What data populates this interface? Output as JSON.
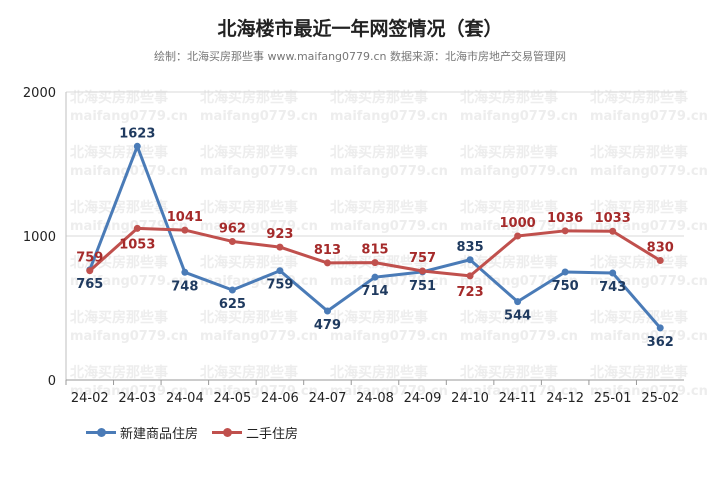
{
  "title": "北海楼市最近一年网签情况（套）",
  "subtitle": "绘制：北海买房那些事 www.maifang0779.cn 数据来源：北海市房地产交易管理网",
  "watermark": [
    "北海买房那些事",
    "maifang0779.cn"
  ],
  "colors": {
    "new": "#4a7bb7",
    "second": "#c0504d",
    "grid": "#d9d9d9",
    "new_label": "#1f3a5f",
    "second_label": "#a52a2a"
  },
  "chart_data": {
    "type": "line",
    "categories": [
      "24-02",
      "24-03",
      "24-04",
      "24-05",
      "24-06",
      "24-07",
      "24-08",
      "24-09",
      "24-10",
      "24-11",
      "24-12",
      "25-01",
      "25-02"
    ],
    "series": [
      {
        "name": "新建商品住房",
        "values": [
          765,
          1623,
          748,
          625,
          759,
          479,
          714,
          751,
          835,
          544,
          750,
          743,
          362
        ]
      },
      {
        "name": "二手住房",
        "values": [
          759,
          1053,
          1041,
          962,
          923,
          813,
          815,
          757,
          723,
          1000,
          1036,
          1033,
          830
        ]
      }
    ],
    "yticks": [
      "0",
      "1000",
      "2000"
    ],
    "ylim": [
      0,
      2000
    ],
    "grid": true,
    "legend_position": "bottom-left"
  }
}
